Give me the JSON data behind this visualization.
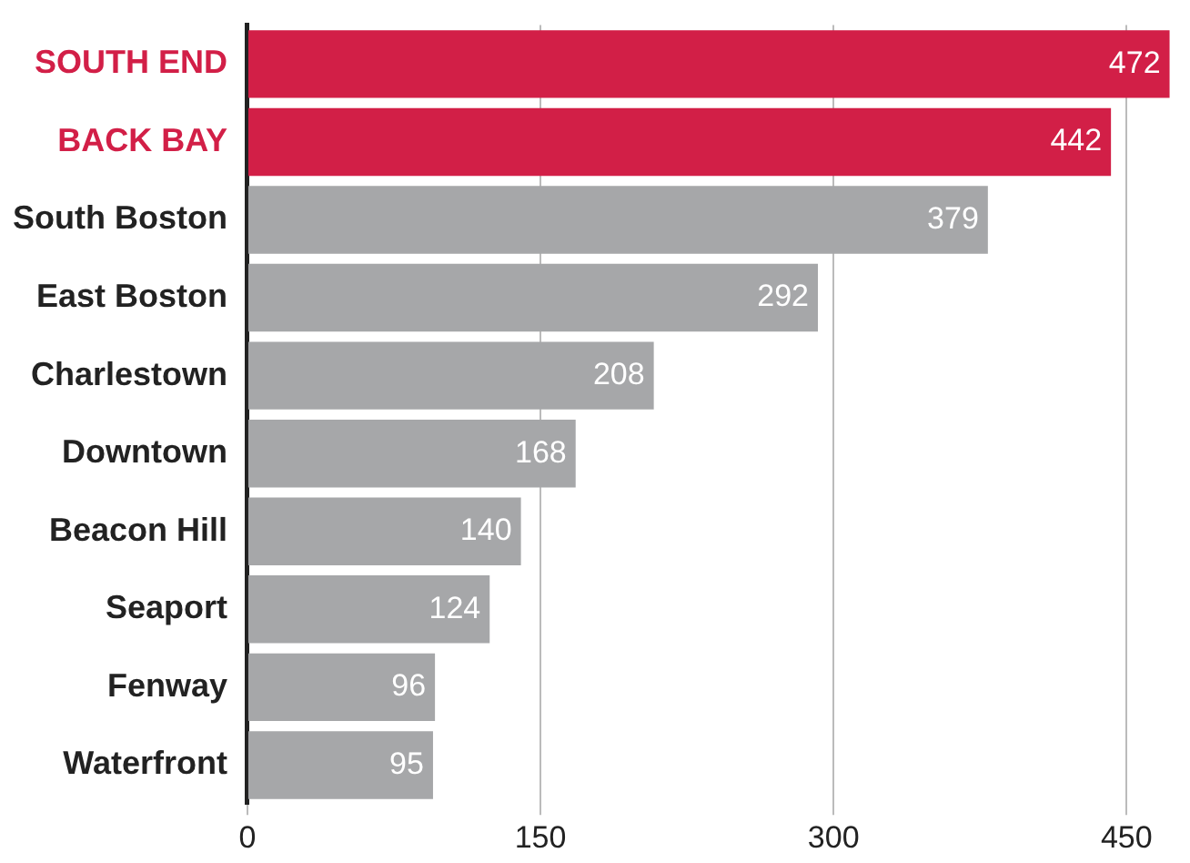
{
  "chart_data": {
    "type": "bar",
    "orientation": "horizontal",
    "categories": [
      "SOUTH END",
      "BACK BAY",
      "South Boston",
      "East Boston",
      "Charlestown",
      "Downtown",
      "Beacon Hill",
      "Seaport",
      "Fenway",
      "Waterfront"
    ],
    "values": [
      472,
      442,
      379,
      292,
      208,
      168,
      140,
      124,
      96,
      95
    ],
    "colors": [
      "#d21f47",
      "#d21f47",
      "#a6a7a9",
      "#a6a7a9",
      "#a6a7a9",
      "#a6a7a9",
      "#a6a7a9",
      "#a6a7a9",
      "#a6a7a9",
      "#a6a7a9"
    ],
    "xlim": [
      0,
      475
    ],
    "xticks": [
      0,
      150,
      300,
      450
    ],
    "grid": "x",
    "data_labels": true
  }
}
